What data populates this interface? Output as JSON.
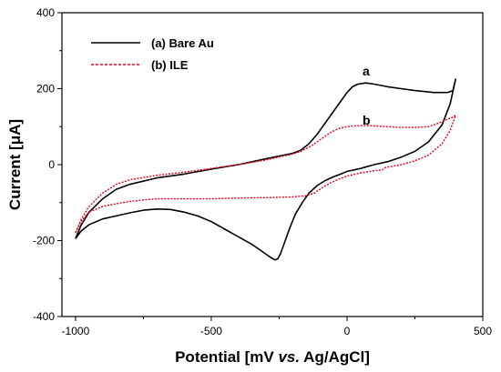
{
  "chart_data": {
    "type": "line",
    "xlabel": {
      "prefix": "Potential [mV ",
      "italic": "vs.",
      "suffix": " Ag/AgCl]"
    },
    "ylabel": "Current [μA]",
    "xlim": [
      -1050,
      500
    ],
    "ylim": [
      -400,
      400
    ],
    "xticks": [
      -1000,
      -500,
      0,
      500
    ],
    "yticks": [
      -400,
      -200,
      0,
      200,
      400
    ],
    "legend_position": "top-left",
    "series": [
      {
        "name": "(a) Bare Au",
        "color": "#000000",
        "dash": "solid",
        "curve_label": "a",
        "points": [
          [
            -1000,
            -195
          ],
          [
            -980,
            -175
          ],
          [
            -950,
            -158
          ],
          [
            -900,
            -143
          ],
          [
            -850,
            -135
          ],
          [
            -800,
            -127
          ],
          [
            -750,
            -120
          ],
          [
            -700,
            -117
          ],
          [
            -650,
            -118
          ],
          [
            -600,
            -125
          ],
          [
            -550,
            -135
          ],
          [
            -500,
            -150
          ],
          [
            -450,
            -170
          ],
          [
            -400,
            -190
          ],
          [
            -350,
            -210
          ],
          [
            -320,
            -225
          ],
          [
            -300,
            -235
          ],
          [
            -280,
            -245
          ],
          [
            -265,
            -251
          ],
          [
            -255,
            -248
          ],
          [
            -245,
            -235
          ],
          [
            -230,
            -205
          ],
          [
            -210,
            -165
          ],
          [
            -190,
            -130
          ],
          [
            -165,
            -100
          ],
          [
            -140,
            -75
          ],
          [
            -110,
            -55
          ],
          [
            -80,
            -42
          ],
          [
            -50,
            -32
          ],
          [
            -20,
            -24
          ],
          [
            0,
            -18
          ],
          [
            50,
            -10
          ],
          [
            100,
            0
          ],
          [
            150,
            8
          ],
          [
            200,
            20
          ],
          [
            250,
            35
          ],
          [
            300,
            60
          ],
          [
            350,
            105
          ],
          [
            380,
            160
          ],
          [
            400,
            225
          ],
          [
            390,
            195
          ],
          [
            370,
            190
          ],
          [
            320,
            190
          ],
          [
            250,
            195
          ],
          [
            200,
            200
          ],
          [
            150,
            205
          ],
          [
            100,
            212
          ],
          [
            70,
            215
          ],
          [
            40,
            212
          ],
          [
            20,
            205
          ],
          [
            0,
            190
          ],
          [
            -20,
            170
          ],
          [
            -50,
            140
          ],
          [
            -80,
            110
          ],
          [
            -110,
            80
          ],
          [
            -140,
            55
          ],
          [
            -170,
            38
          ],
          [
            -200,
            30
          ],
          [
            -300,
            15
          ],
          [
            -400,
            0
          ],
          [
            -500,
            -12
          ],
          [
            -600,
            -25
          ],
          [
            -700,
            -35
          ],
          [
            -800,
            -52
          ],
          [
            -850,
            -65
          ],
          [
            -900,
            -90
          ],
          [
            -950,
            -125
          ],
          [
            -980,
            -160
          ],
          [
            -1000,
            -195
          ]
        ]
      },
      {
        "name": "(b) ILE",
        "color": "#e8001c",
        "dash": "dotted",
        "curve_label": "b",
        "points": [
          [
            -1000,
            -180
          ],
          [
            -980,
            -150
          ],
          [
            -950,
            -125
          ],
          [
            -900,
            -110
          ],
          [
            -850,
            -103
          ],
          [
            -800,
            -97
          ],
          [
            -750,
            -93
          ],
          [
            -700,
            -90
          ],
          [
            -600,
            -90
          ],
          [
            -500,
            -90
          ],
          [
            -400,
            -88
          ],
          [
            -300,
            -87
          ],
          [
            -200,
            -85
          ],
          [
            -150,
            -82
          ],
          [
            -120,
            -75
          ],
          [
            -90,
            -60
          ],
          [
            -60,
            -48
          ],
          [
            -30,
            -38
          ],
          [
            0,
            -30
          ],
          [
            50,
            -22
          ],
          [
            100,
            -16
          ],
          [
            130,
            -14
          ],
          [
            140,
            -8
          ],
          [
            200,
            0
          ],
          [
            250,
            10
          ],
          [
            300,
            25
          ],
          [
            350,
            55
          ],
          [
            380,
            90
          ],
          [
            400,
            130
          ],
          [
            390,
            125
          ],
          [
            370,
            120
          ],
          [
            340,
            110
          ],
          [
            300,
            100
          ],
          [
            250,
            98
          ],
          [
            200,
            98
          ],
          [
            150,
            100
          ],
          [
            100,
            102
          ],
          [
            60,
            103
          ],
          [
            30,
            102
          ],
          [
            0,
            100
          ],
          [
            -30,
            95
          ],
          [
            -60,
            85
          ],
          [
            -90,
            70
          ],
          [
            -130,
            50
          ],
          [
            -170,
            35
          ],
          [
            -200,
            28
          ],
          [
            -300,
            12
          ],
          [
            -400,
            0
          ],
          [
            -500,
            -10
          ],
          [
            -600,
            -20
          ],
          [
            -700,
            -28
          ],
          [
            -800,
            -40
          ],
          [
            -850,
            -52
          ],
          [
            -900,
            -75
          ],
          [
            -950,
            -110
          ],
          [
            -980,
            -145
          ],
          [
            -1000,
            -180
          ]
        ]
      }
    ]
  }
}
